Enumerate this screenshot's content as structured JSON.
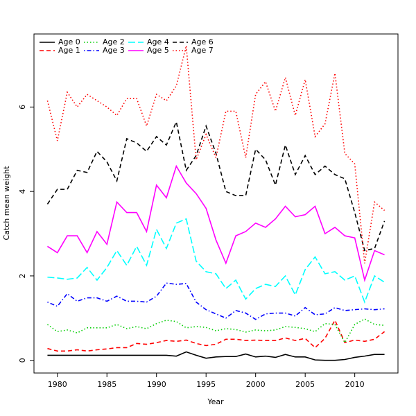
{
  "chart_data": {
    "type": "line",
    "xlabel": "Year",
    "ylabel": "Catch mean weight",
    "x": [
      1979,
      1980,
      1981,
      1982,
      1983,
      1984,
      1985,
      1986,
      1987,
      1988,
      1989,
      1990,
      1991,
      1992,
      1993,
      1994,
      1995,
      1996,
      1997,
      1998,
      1999,
      2000,
      2001,
      2002,
      2003,
      2004,
      2005,
      2006,
      2007,
      2008,
      2009,
      2010,
      2011,
      2012,
      2013
    ],
    "xlim": [
      1977.64,
      2014.36
    ],
    "xticks": [
      1980,
      1985,
      1990,
      1995,
      2000,
      2005,
      2010
    ],
    "ylim": [
      -0.3,
      7.73
    ],
    "yticks": [
      0,
      2,
      4,
      6
    ],
    "legend": "top-left",
    "series": [
      {
        "name": "Age 0",
        "color": "#000000",
        "dash": "solid",
        "values": [
          0.12,
          0.12,
          0.12,
          0.12,
          0.12,
          0.12,
          0.12,
          0.12,
          0.12,
          0.12,
          0.12,
          0.12,
          0.12,
          0.1,
          0.2,
          0.12,
          0.05,
          0.08,
          0.09,
          0.09,
          0.15,
          0.08,
          0.1,
          0.07,
          0.14,
          0.08,
          0.08,
          0.01,
          0.0,
          0.0,
          0.02,
          0.07,
          0.1,
          0.14,
          0.14
        ]
      },
      {
        "name": "Age 1",
        "color": "#ff0000",
        "dash": "dashed",
        "values": [
          0.28,
          0.22,
          0.22,
          0.25,
          0.22,
          0.25,
          0.27,
          0.3,
          0.3,
          0.4,
          0.38,
          0.42,
          0.47,
          0.45,
          0.48,
          0.4,
          0.35,
          0.38,
          0.5,
          0.5,
          0.47,
          0.48,
          0.47,
          0.47,
          0.53,
          0.47,
          0.52,
          0.3,
          0.52,
          0.95,
          0.42,
          0.48,
          0.45,
          0.5,
          0.68
        ]
      },
      {
        "name": "Age 2",
        "color": "#00cd00",
        "dash": "dotted",
        "values": [
          0.85,
          0.68,
          0.72,
          0.65,
          0.77,
          0.77,
          0.77,
          0.85,
          0.75,
          0.8,
          0.75,
          0.87,
          0.95,
          0.92,
          0.77,
          0.8,
          0.78,
          0.7,
          0.75,
          0.73,
          0.67,
          0.72,
          0.7,
          0.72,
          0.8,
          0.78,
          0.75,
          0.68,
          0.87,
          0.85,
          0.42,
          0.85,
          0.98,
          0.85,
          0.83
        ]
      },
      {
        "name": "Age 3",
        "color": "#0000ff",
        "dash": "dotdash",
        "values": [
          1.38,
          1.28,
          1.58,
          1.4,
          1.48,
          1.48,
          1.4,
          1.52,
          1.4,
          1.4,
          1.38,
          1.52,
          1.83,
          1.8,
          1.82,
          1.38,
          1.2,
          1.1,
          1.0,
          1.18,
          1.12,
          0.97,
          1.1,
          1.12,
          1.12,
          1.05,
          1.25,
          1.08,
          1.1,
          1.25,
          1.18,
          1.2,
          1.22,
          1.2,
          1.22
        ]
      },
      {
        "name": "Age 4",
        "color": "#00ffff",
        "dash": "longdash",
        "values": [
          1.97,
          1.95,
          1.92,
          1.95,
          2.2,
          1.9,
          2.2,
          2.6,
          2.25,
          2.7,
          2.25,
          3.1,
          2.65,
          3.25,
          3.35,
          2.35,
          2.1,
          2.05,
          1.7,
          1.9,
          1.45,
          1.7,
          1.8,
          1.75,
          2.0,
          1.55,
          2.15,
          2.45,
          2.05,
          2.1,
          1.9,
          2.0,
          1.38,
          2.0,
          1.85
        ]
      },
      {
        "name": "Age 5",
        "color": "#ff00ff",
        "dash": "solid",
        "values": [
          2.7,
          2.55,
          2.95,
          2.95,
          2.55,
          3.05,
          2.75,
          3.75,
          3.5,
          3.5,
          3.05,
          4.15,
          3.85,
          4.6,
          4.2,
          3.95,
          3.6,
          2.85,
          2.3,
          2.95,
          3.05,
          3.25,
          3.15,
          3.35,
          3.65,
          3.4,
          3.45,
          3.65,
          3.0,
          3.15,
          2.95,
          2.9,
          1.9,
          2.6,
          2.5
        ]
      },
      {
        "name": "Age 6",
        "color": "#000000",
        "dash": "dashed",
        "values": [
          3.7,
          4.05,
          4.05,
          4.5,
          4.45,
          4.95,
          4.7,
          4.25,
          5.25,
          5.15,
          4.95,
          5.3,
          5.1,
          5.65,
          4.5,
          4.85,
          5.55,
          4.9,
          4.0,
          3.9,
          3.9,
          5.0,
          4.75,
          4.15,
          5.1,
          4.4,
          4.85,
          4.4,
          4.6,
          4.4,
          4.3,
          3.5,
          2.6,
          2.65,
          3.3
        ]
      },
      {
        "name": "Age 7",
        "color": "#ff0000",
        "dash": "dotted",
        "values": [
          6.15,
          5.2,
          6.35,
          6.0,
          6.3,
          6.15,
          6.0,
          5.8,
          6.2,
          6.2,
          5.55,
          6.3,
          6.15,
          6.5,
          7.45,
          4.75,
          5.35,
          4.8,
          5.9,
          5.9,
          4.8,
          6.3,
          6.6,
          5.9,
          6.7,
          5.8,
          6.65,
          5.3,
          5.6,
          6.8,
          4.9,
          4.65,
          2.3,
          3.75,
          3.55
        ]
      }
    ]
  }
}
